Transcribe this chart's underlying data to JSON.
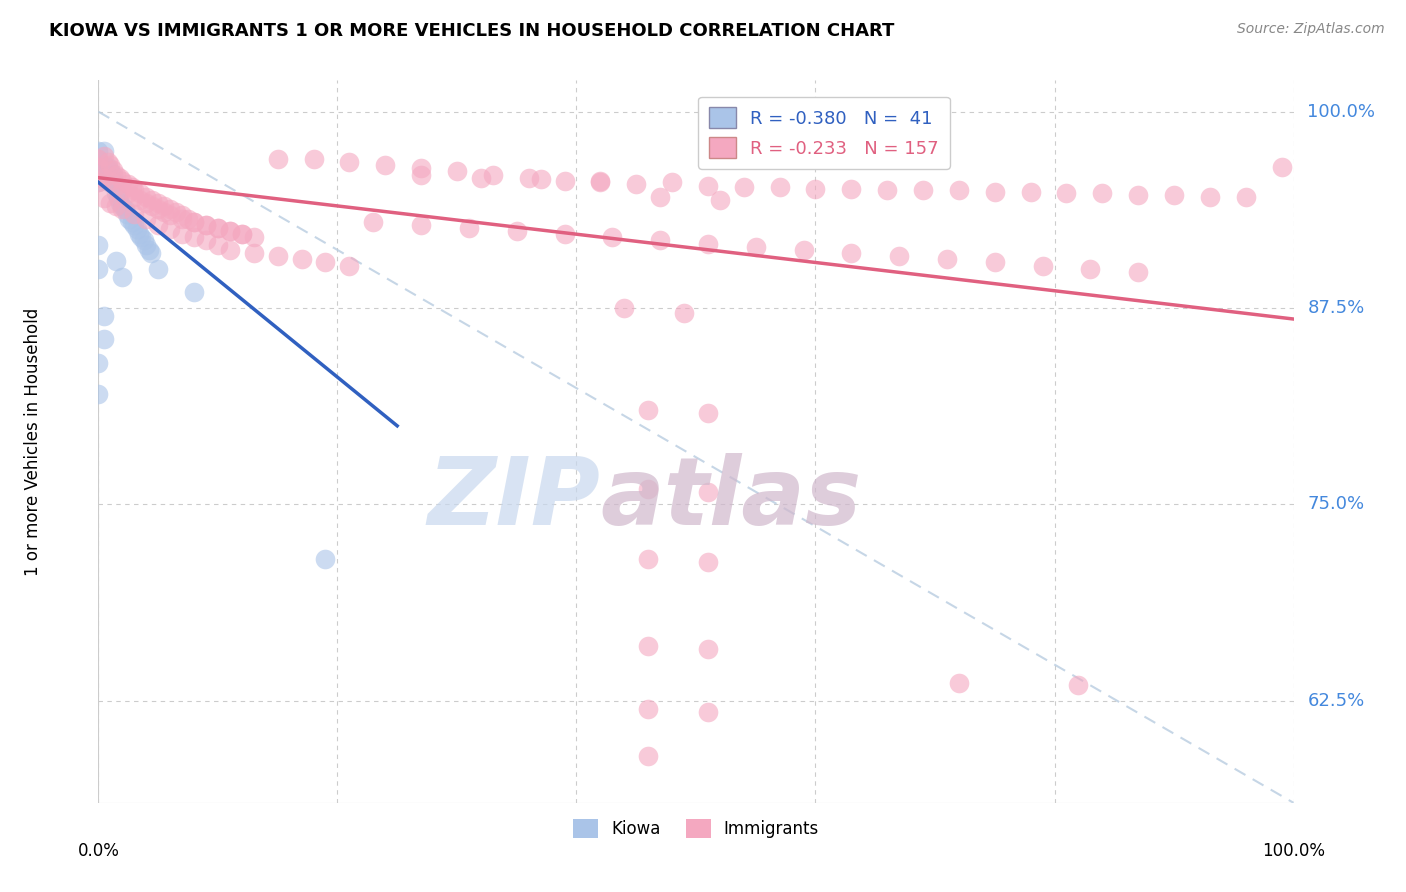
{
  "title": "KIOWA VS IMMIGRANTS 1 OR MORE VEHICLES IN HOUSEHOLD CORRELATION CHART",
  "source": "Source: ZipAtlas.com",
  "ylabel": "1 or more Vehicles in Household",
  "legend_kiowa": "R = -0.380   N =  41",
  "legend_immigrants": "R = -0.233   N = 157",
  "kiowa_color": "#aac4e8",
  "immigrants_color": "#f4a8c0",
  "kiowa_line_color": "#3060c0",
  "immigrants_line_color": "#e06080",
  "dashed_line_color": "#b8cce0",
  "watermark_zip": "ZIP",
  "watermark_atlas": "atlas",
  "ytick_labels": [
    "100.0%",
    "87.5%",
    "75.0%",
    "62.5%"
  ],
  "ytick_values": [
    1.0,
    0.875,
    0.75,
    0.625
  ],
  "xmin": 0.0,
  "xmax": 1.0,
  "ymin": 0.56,
  "ymax": 1.02,
  "kiowa_line_x": [
    0.0,
    0.25
  ],
  "kiowa_line_y": [
    0.955,
    0.8
  ],
  "immigrants_line_x": [
    0.0,
    1.0
  ],
  "immigrants_line_y": [
    0.958,
    0.868
  ],
  "dashed_line_x": [
    0.0,
    1.0
  ],
  "dashed_line_y": [
    1.0,
    0.56
  ],
  "kiowa_scatter": [
    [
      0.0,
      0.975
    ],
    [
      0.0,
      0.97
    ],
    [
      0.0,
      0.96
    ],
    [
      0.0,
      0.955
    ],
    [
      0.005,
      0.975
    ],
    [
      0.005,
      0.965
    ],
    [
      0.006,
      0.965
    ],
    [
      0.007,
      0.96
    ],
    [
      0.008,
      0.965
    ],
    [
      0.008,
      0.958
    ],
    [
      0.009,
      0.955
    ],
    [
      0.01,
      0.962
    ],
    [
      0.01,
      0.955
    ],
    [
      0.012,
      0.96
    ],
    [
      0.013,
      0.955
    ],
    [
      0.015,
      0.948
    ],
    [
      0.016,
      0.945
    ],
    [
      0.018,
      0.942
    ],
    [
      0.02,
      0.94
    ],
    [
      0.022,
      0.938
    ],
    [
      0.024,
      0.935
    ],
    [
      0.026,
      0.932
    ],
    [
      0.028,
      0.93
    ],
    [
      0.03,
      0.928
    ],
    [
      0.032,
      0.925
    ],
    [
      0.034,
      0.922
    ],
    [
      0.036,
      0.92
    ],
    [
      0.038,
      0.918
    ],
    [
      0.04,
      0.915
    ],
    [
      0.042,
      0.912
    ],
    [
      0.044,
      0.91
    ],
    [
      0.0,
      0.915
    ],
    [
      0.0,
      0.9
    ],
    [
      0.015,
      0.905
    ],
    [
      0.02,
      0.895
    ],
    [
      0.05,
      0.9
    ],
    [
      0.08,
      0.885
    ],
    [
      0.0,
      0.84
    ],
    [
      0.0,
      0.82
    ],
    [
      0.005,
      0.87
    ],
    [
      0.005,
      0.855
    ],
    [
      0.19,
      0.715
    ]
  ],
  "immigrants_scatter": [
    [
      0.0,
      0.97
    ],
    [
      0.0,
      0.965
    ],
    [
      0.0,
      0.958
    ],
    [
      0.005,
      0.972
    ],
    [
      0.008,
      0.968
    ],
    [
      0.01,
      0.966
    ],
    [
      0.012,
      0.963
    ],
    [
      0.015,
      0.96
    ],
    [
      0.018,
      0.958
    ],
    [
      0.02,
      0.956
    ],
    [
      0.025,
      0.954
    ],
    [
      0.028,
      0.952
    ],
    [
      0.03,
      0.95
    ],
    [
      0.035,
      0.948
    ],
    [
      0.04,
      0.946
    ],
    [
      0.045,
      0.944
    ],
    [
      0.05,
      0.942
    ],
    [
      0.055,
      0.94
    ],
    [
      0.06,
      0.938
    ],
    [
      0.065,
      0.936
    ],
    [
      0.07,
      0.934
    ],
    [
      0.075,
      0.932
    ],
    [
      0.08,
      0.93
    ],
    [
      0.09,
      0.928
    ],
    [
      0.1,
      0.926
    ],
    [
      0.11,
      0.924
    ],
    [
      0.12,
      0.922
    ],
    [
      0.13,
      0.92
    ],
    [
      0.0,
      0.955
    ],
    [
      0.005,
      0.958
    ],
    [
      0.01,
      0.956
    ],
    [
      0.015,
      0.953
    ],
    [
      0.02,
      0.95
    ],
    [
      0.025,
      0.948
    ],
    [
      0.03,
      0.946
    ],
    [
      0.035,
      0.944
    ],
    [
      0.04,
      0.942
    ],
    [
      0.045,
      0.94
    ],
    [
      0.05,
      0.938
    ],
    [
      0.055,
      0.936
    ],
    [
      0.06,
      0.934
    ],
    [
      0.07,
      0.932
    ],
    [
      0.08,
      0.93
    ],
    [
      0.09,
      0.928
    ],
    [
      0.1,
      0.926
    ],
    [
      0.11,
      0.924
    ],
    [
      0.12,
      0.922
    ],
    [
      0.005,
      0.945
    ],
    [
      0.01,
      0.942
    ],
    [
      0.015,
      0.94
    ],
    [
      0.02,
      0.938
    ],
    [
      0.03,
      0.935
    ],
    [
      0.04,
      0.932
    ],
    [
      0.05,
      0.928
    ],
    [
      0.06,
      0.925
    ],
    [
      0.07,
      0.922
    ],
    [
      0.08,
      0.92
    ],
    [
      0.09,
      0.918
    ],
    [
      0.1,
      0.915
    ],
    [
      0.11,
      0.912
    ],
    [
      0.13,
      0.91
    ],
    [
      0.15,
      0.908
    ],
    [
      0.17,
      0.906
    ],
    [
      0.19,
      0.904
    ],
    [
      0.21,
      0.902
    ],
    [
      0.15,
      0.97
    ],
    [
      0.18,
      0.97
    ],
    [
      0.21,
      0.968
    ],
    [
      0.24,
      0.966
    ],
    [
      0.27,
      0.964
    ],
    [
      0.3,
      0.962
    ],
    [
      0.33,
      0.96
    ],
    [
      0.36,
      0.958
    ],
    [
      0.39,
      0.956
    ],
    [
      0.42,
      0.955
    ],
    [
      0.45,
      0.954
    ],
    [
      0.48,
      0.955
    ],
    [
      0.51,
      0.953
    ],
    [
      0.54,
      0.952
    ],
    [
      0.57,
      0.952
    ],
    [
      0.6,
      0.951
    ],
    [
      0.63,
      0.951
    ],
    [
      0.66,
      0.95
    ],
    [
      0.69,
      0.95
    ],
    [
      0.72,
      0.95
    ],
    [
      0.75,
      0.949
    ],
    [
      0.78,
      0.949
    ],
    [
      0.81,
      0.948
    ],
    [
      0.84,
      0.948
    ],
    [
      0.87,
      0.947
    ],
    [
      0.9,
      0.947
    ],
    [
      0.93,
      0.946
    ],
    [
      0.96,
      0.946
    ],
    [
      0.99,
      0.965
    ],
    [
      0.23,
      0.93
    ],
    [
      0.27,
      0.928
    ],
    [
      0.31,
      0.926
    ],
    [
      0.35,
      0.924
    ],
    [
      0.39,
      0.922
    ],
    [
      0.43,
      0.92
    ],
    [
      0.47,
      0.918
    ],
    [
      0.51,
      0.916
    ],
    [
      0.55,
      0.914
    ],
    [
      0.59,
      0.912
    ],
    [
      0.63,
      0.91
    ],
    [
      0.67,
      0.908
    ],
    [
      0.71,
      0.906
    ],
    [
      0.75,
      0.904
    ],
    [
      0.79,
      0.902
    ],
    [
      0.83,
      0.9
    ],
    [
      0.87,
      0.898
    ],
    [
      0.27,
      0.96
    ],
    [
      0.32,
      0.958
    ],
    [
      0.37,
      0.957
    ],
    [
      0.42,
      0.956
    ],
    [
      0.47,
      0.946
    ],
    [
      0.52,
      0.944
    ],
    [
      0.44,
      0.875
    ],
    [
      0.49,
      0.872
    ],
    [
      0.46,
      0.81
    ],
    [
      0.51,
      0.808
    ],
    [
      0.46,
      0.76
    ],
    [
      0.51,
      0.758
    ],
    [
      0.46,
      0.715
    ],
    [
      0.51,
      0.713
    ],
    [
      0.46,
      0.66
    ],
    [
      0.51,
      0.658
    ],
    [
      0.46,
      0.62
    ],
    [
      0.51,
      0.618
    ],
    [
      0.46,
      0.59
    ],
    [
      0.72,
      0.636
    ],
    [
      0.82,
      0.635
    ]
  ]
}
